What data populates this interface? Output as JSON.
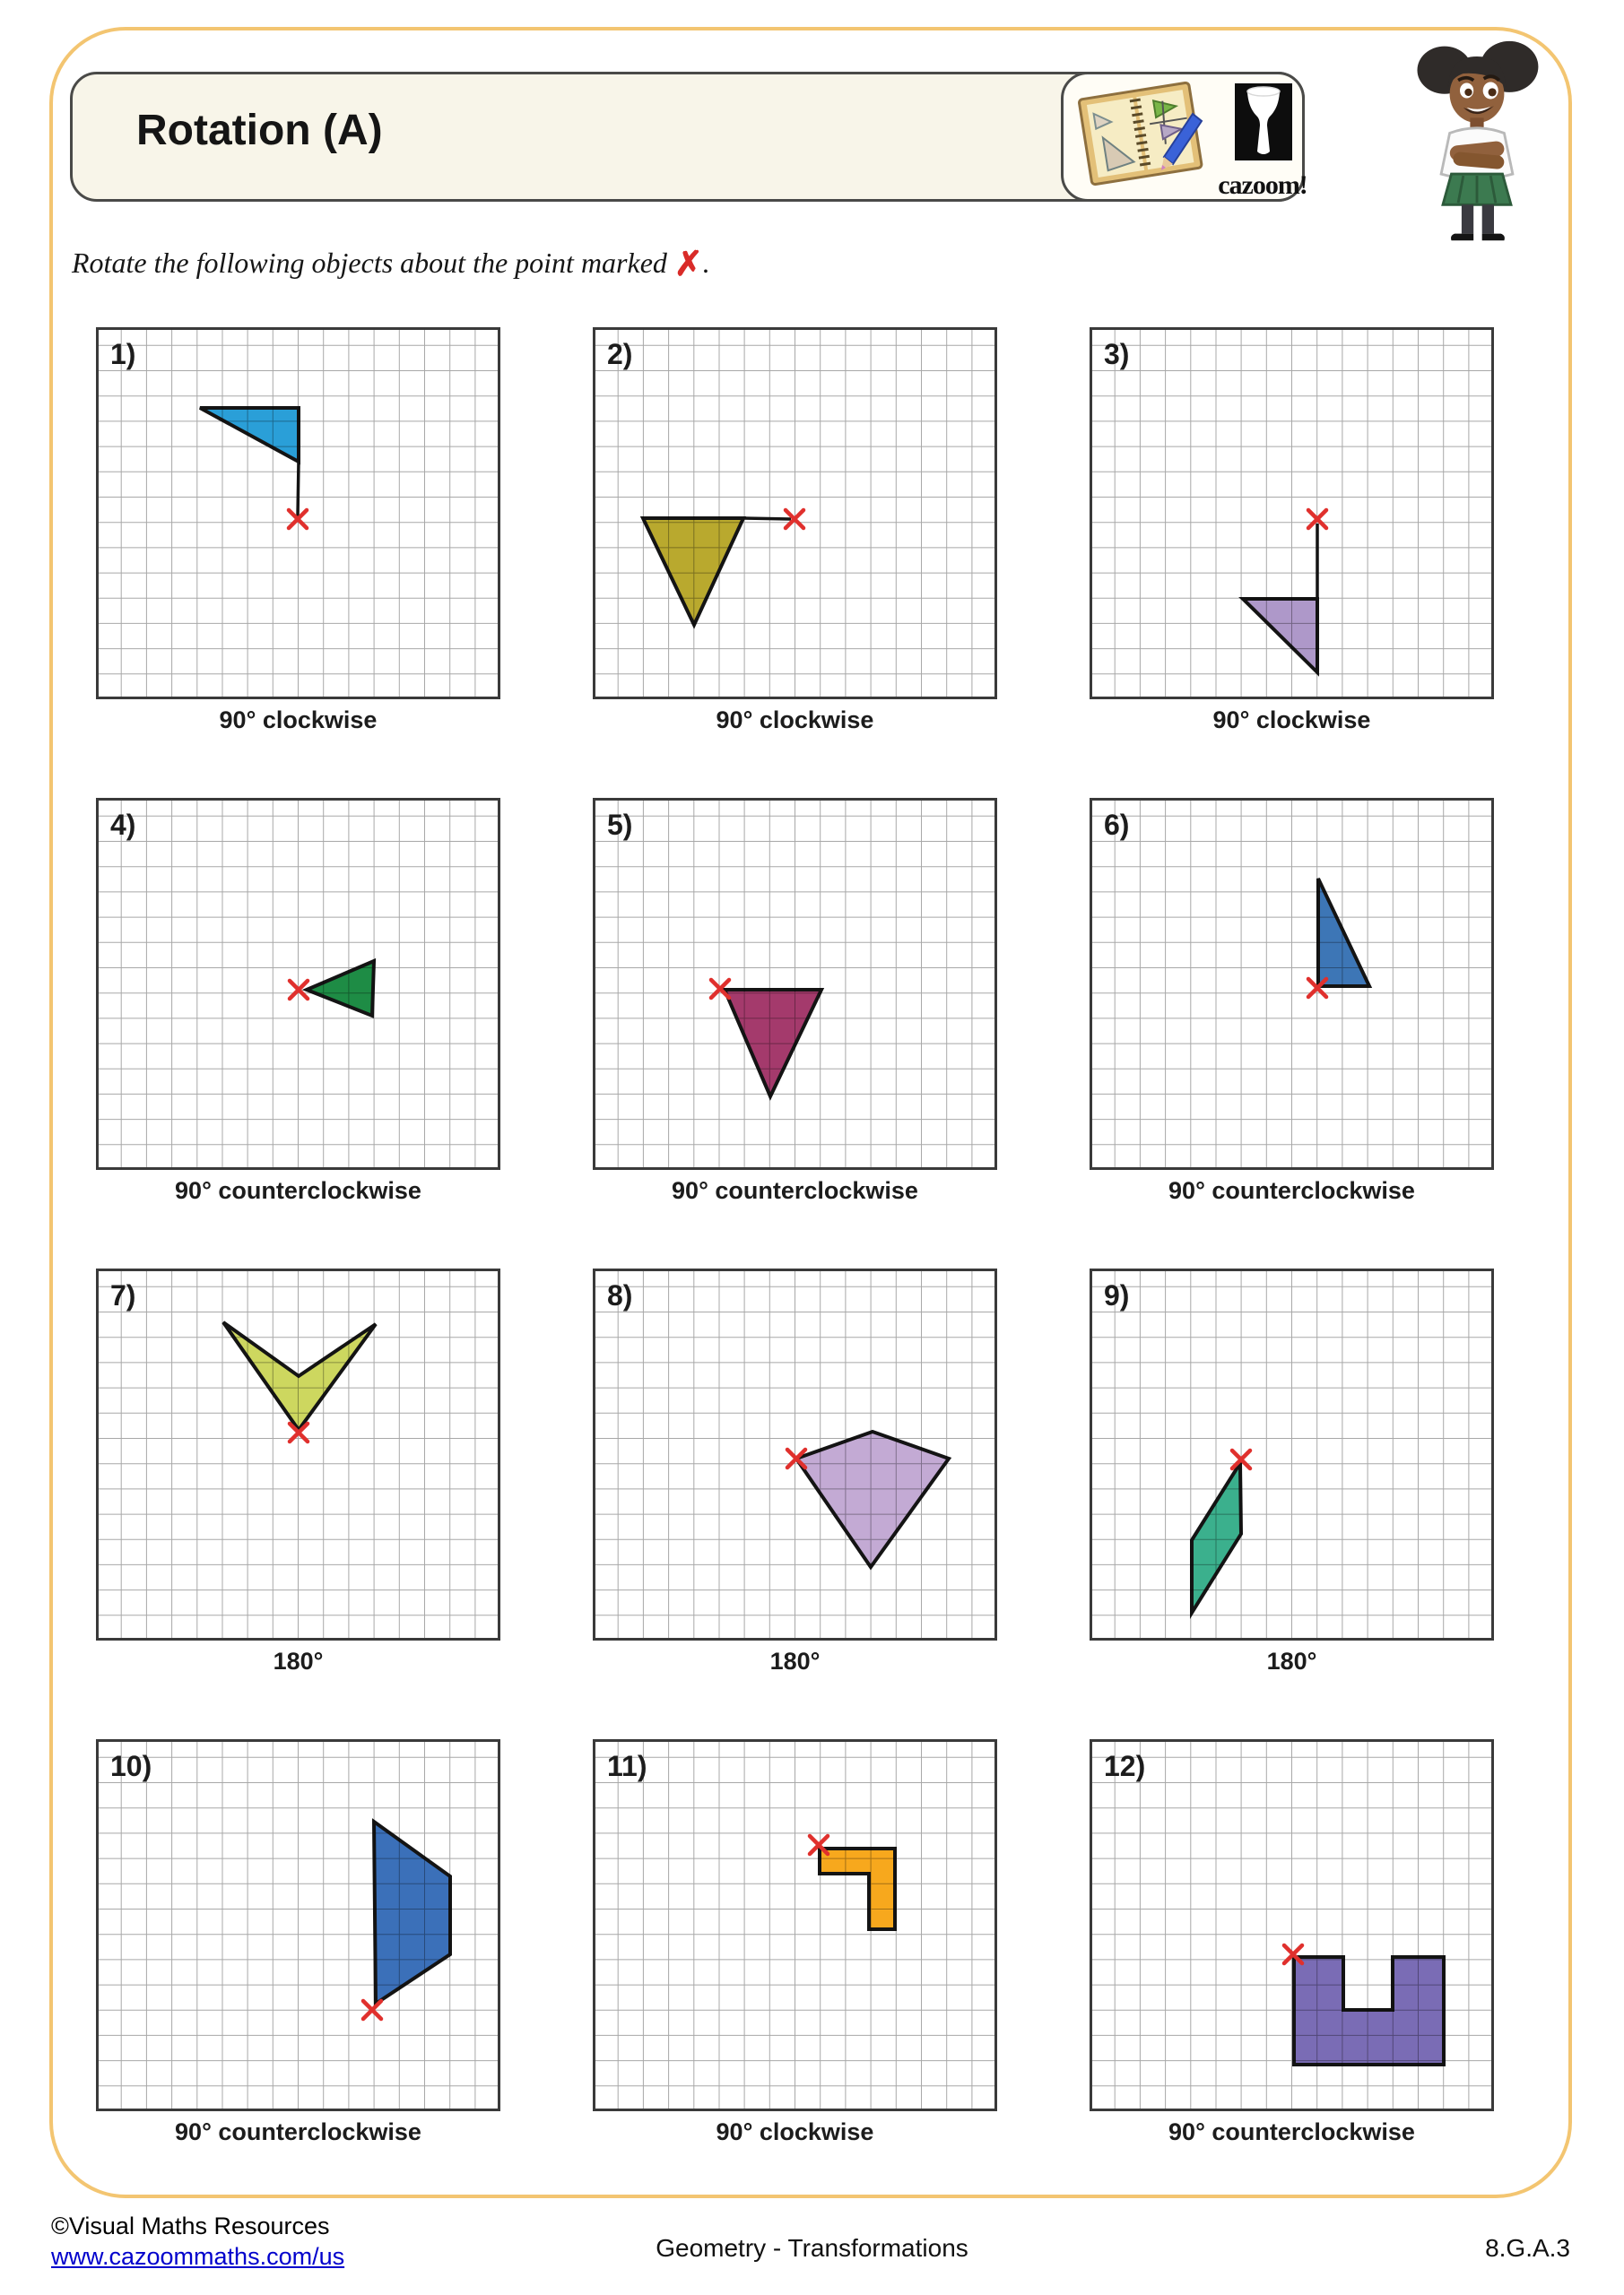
{
  "header": {
    "title": "Rotation (A)",
    "brand_text": "cazoom!"
  },
  "instruction": {
    "text": "Rotate the following objects about the point marked",
    "suffix": "."
  },
  "colors": {
    "x_mark": "#e0302d",
    "grid_line": "#a8a8a8",
    "panel_border": "#3a3a3a",
    "shape_stroke": "#141414",
    "accent_border": "#f3c571"
  },
  "panels": [
    {
      "number": "1)",
      "caption": "90° clockwise",
      "fill": "#2a9fd8",
      "polys": [
        [
          [
            116,
            90
          ],
          [
            226,
            90
          ],
          [
            226,
            150
          ]
        ]
      ],
      "lines": [
        [
          [
            226,
            150
          ],
          [
            225,
            211
          ]
        ]
      ],
      "x": [
        225,
        214
      ]
    },
    {
      "number": "2)",
      "caption": "90° clockwise",
      "fill": "#b9a92e",
      "polys": [
        [
          [
            56,
            213
          ],
          [
            168,
            213
          ],
          [
            113,
            332
          ]
        ]
      ],
      "lines": [
        [
          [
            168,
            213
          ],
          [
            221,
            214
          ]
        ]
      ],
      "x": [
        225,
        214
      ]
    },
    {
      "number": "3)",
      "caption": "90° clockwise",
      "fill": "#ae98c9",
      "polys": [
        [
          [
            171,
            303
          ],
          [
            254,
            303
          ],
          [
            254,
            385
          ]
        ]
      ],
      "lines": [
        [
          [
            254,
            219
          ],
          [
            254,
            303
          ]
        ]
      ],
      "x": [
        254,
        214
      ]
    },
    {
      "number": "4)",
      "caption": "90° counterclockwise",
      "fill": "#1e8c45",
      "polys": [
        [
          [
            235,
            214
          ],
          [
            310,
            182
          ],
          [
            308,
            243
          ]
        ]
      ],
      "lines": [],
      "x": [
        226,
        214
      ]
    },
    {
      "number": "5)",
      "caption": "90° counterclockwise",
      "fill": "#a43a6c",
      "polys": [
        [
          [
            147,
            214
          ],
          [
            255,
            214
          ],
          [
            198,
            333
          ]
        ]
      ],
      "lines": [],
      "x": [
        142,
        213
      ]
    },
    {
      "number": "6)",
      "caption": "90° counterclockwise",
      "fill": "#3d76b6",
      "polys": [
        [
          [
            255,
            90
          ],
          [
            255,
            210
          ],
          [
            312,
            210
          ]
        ]
      ],
      "lines": [],
      "x": [
        254,
        212
      ]
    },
    {
      "number": "7)",
      "caption": "180°",
      "fill": "#cdd75f",
      "polys": [
        [
          [
            142,
            60
          ],
          [
            226,
            120
          ],
          [
            312,
            62
          ],
          [
            226,
            180
          ]
        ]
      ],
      "lines": [],
      "x": [
        226,
        183
      ]
    },
    {
      "number": "8)",
      "caption": "180°",
      "fill": "#c3aad4",
      "polys": [
        [
          [
            227,
            212
          ],
          [
            312,
            182
          ],
          [
            397,
            212
          ],
          [
            310,
            333
          ]
        ]
      ],
      "lines": [],
      "x": [
        227,
        212
      ]
    },
    {
      "number": "9)",
      "caption": "180°",
      "fill": "#3bb08d",
      "polys": [
        [
          [
            168,
            217
          ],
          [
            169,
            296
          ],
          [
            114,
            384
          ],
          [
            114,
            303
          ]
        ]
      ],
      "lines": [],
      "x": [
        169,
        213
      ]
    },
    {
      "number": "10)",
      "caption": "90° counterclockwise",
      "fill": "#3b70b9",
      "polys": [
        [
          [
            310,
            92
          ],
          [
            395,
            153
          ],
          [
            395,
            240
          ],
          [
            312,
            295
          ]
        ]
      ],
      "lines": [],
      "x": [
        308,
        302
      ]
    },
    {
      "number": "11)",
      "caption": "90° clockwise",
      "fill": "#f7a81d",
      "polys": [
        [
          [
            253,
            122
          ],
          [
            337,
            122
          ],
          [
            337,
            212
          ],
          [
            308,
            212
          ],
          [
            308,
            150
          ],
          [
            253,
            150
          ]
        ]
      ],
      "lines": [],
      "x": [
        252,
        118
      ]
    },
    {
      "number": "12)",
      "caption": "90° counterclockwise",
      "fill": "#7a6cb5",
      "polys": [
        [
          [
            228,
            243
          ],
          [
            283,
            243
          ],
          [
            283,
            302
          ],
          [
            338,
            302
          ],
          [
            338,
            243
          ],
          [
            395,
            243
          ],
          [
            395,
            363
          ],
          [
            228,
            363
          ]
        ]
      ],
      "lines": [],
      "x": [
        227,
        240
      ]
    }
  ],
  "footer": {
    "copyright": "©Visual Maths Resources",
    "url": "www.cazoommaths.com/us",
    "center": "Geometry - Transformations",
    "standard": "8.G.A.3"
  }
}
